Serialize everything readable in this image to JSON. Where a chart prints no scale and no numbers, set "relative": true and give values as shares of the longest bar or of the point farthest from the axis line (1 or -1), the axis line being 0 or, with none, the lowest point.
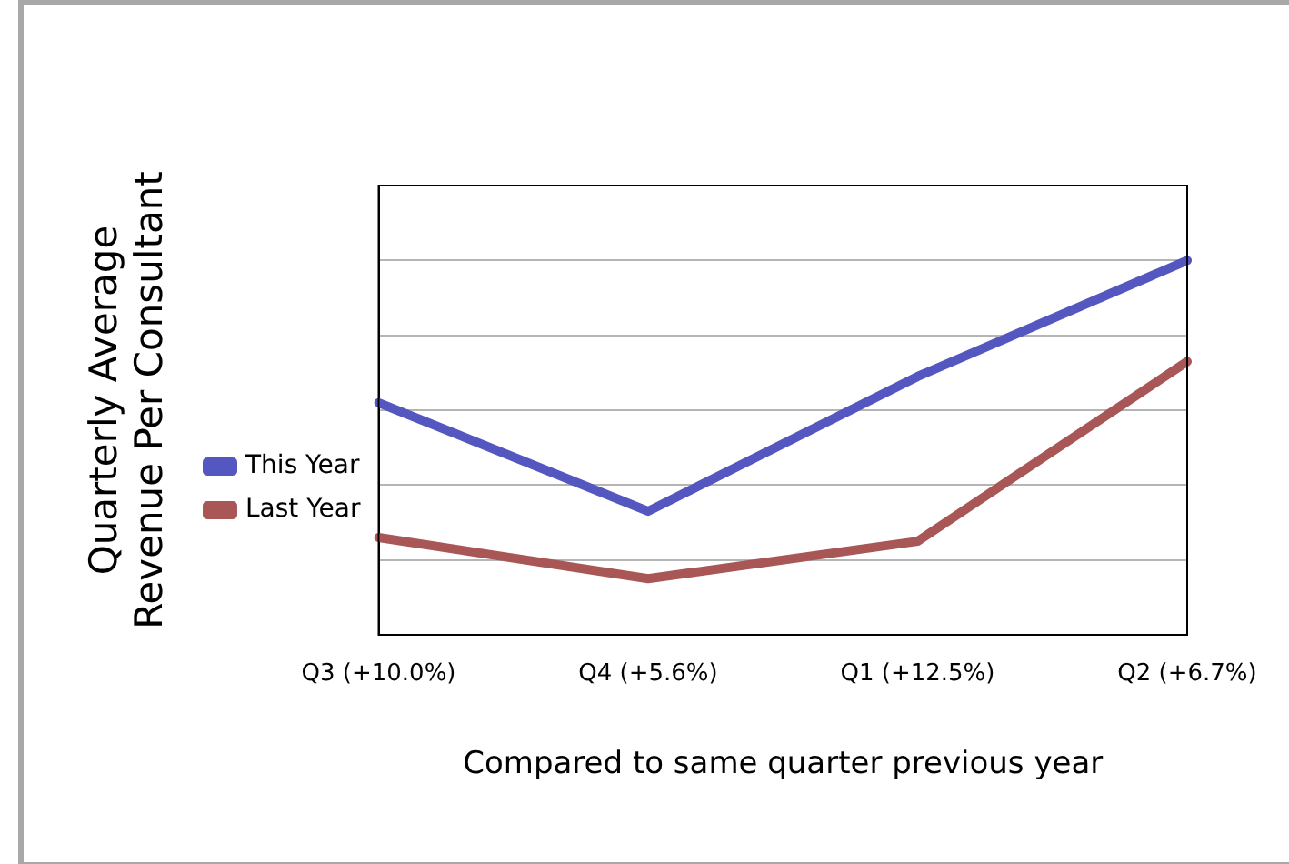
{
  "chart_data": {
    "type": "line",
    "xlabel": "Compared to same quarter previous year",
    "ylabel": "Quarterly Average Revenue Per Consultant",
    "categories": [
      "Q3 (+10.0%)",
      "Q4 (+5.6%)",
      "Q1 (+12.5%)",
      "Q2 (+6.7%)"
    ],
    "relative": true,
    "grid": "y",
    "legend": "left",
    "marker": "none",
    "series": [
      {
        "name": "This Year",
        "color": "#5557c0",
        "values": [
          0.62,
          0.33,
          0.69,
          1
        ]
      },
      {
        "name": "Last Year",
        "color": "#a85656",
        "values": [
          0.26,
          0.15,
          0.25,
          0.73
        ]
      }
    ]
  }
}
